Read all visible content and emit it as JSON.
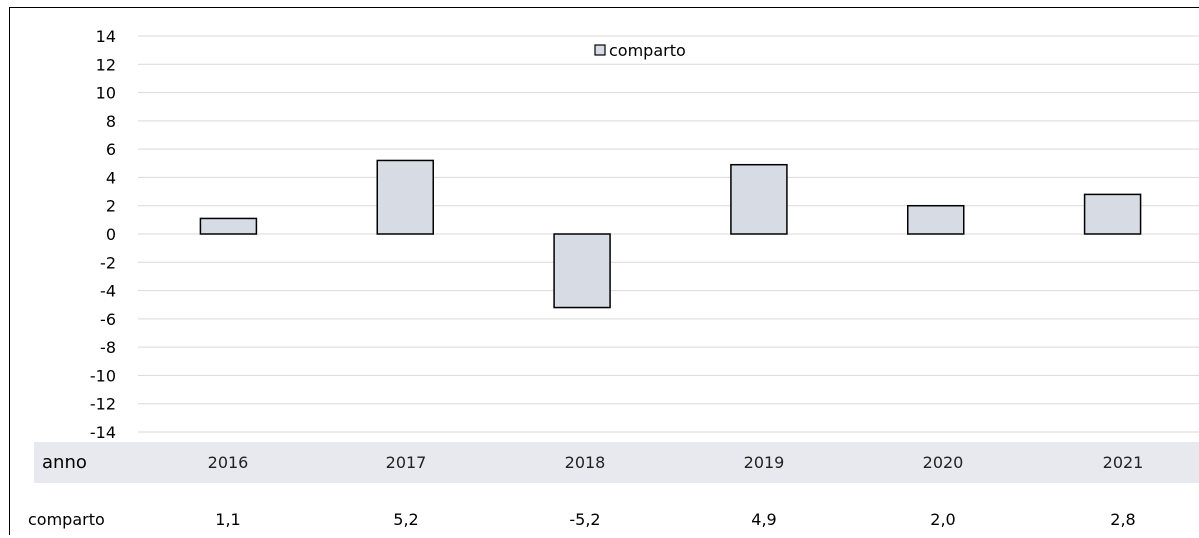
{
  "chart_data": {
    "type": "bar",
    "categories": [
      "2016",
      "2017",
      "2018",
      "2019",
      "2020",
      "2021"
    ],
    "series": [
      {
        "name": "comparto",
        "values": [
          1.1,
          5.2,
          -5.2,
          4.9,
          2.0,
          2.8
        ]
      }
    ],
    "yticks": [
      "14",
      "12",
      "10",
      "8",
      "6",
      "4",
      "2",
      "0",
      "-2",
      "-4",
      "-6",
      "-8",
      "-10",
      "-12",
      "-14"
    ],
    "ylim": [
      -14,
      14
    ],
    "grid": true,
    "legend": {
      "position": "top-center",
      "labels": [
        "comparto"
      ]
    },
    "colors": {
      "bar_fill": "#d6dbe4",
      "bar_stroke": "#000000",
      "grid": "#d9d9d9",
      "table_header_bg": "#e7e9ee"
    }
  },
  "table": {
    "header_label": "anno",
    "years": [
      "2016",
      "2017",
      "2018",
      "2019",
      "2020",
      "2021"
    ],
    "row_label": "comparto",
    "values": [
      "1,1",
      "5,2",
      "-5,2",
      "4,9",
      "2,0",
      "2,8"
    ]
  }
}
